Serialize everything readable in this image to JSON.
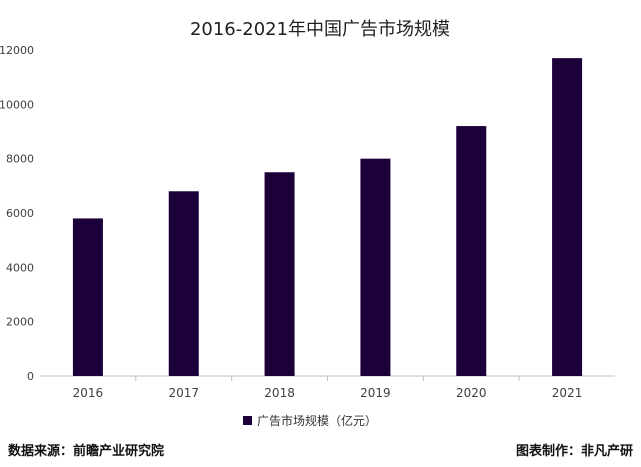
{
  "chart_data": {
    "type": "bar",
    "title": "2016-2021年中国广告市场规模",
    "categories": [
      "2016",
      "2017",
      "2018",
      "2019",
      "2020",
      "2021"
    ],
    "series": [
      {
        "name": "广告市场规模（亿元）",
        "values": [
          5800,
          6800,
          7500,
          8000,
          9200,
          11700
        ]
      }
    ],
    "ylim": [
      0,
      12000
    ],
    "yticks": [
      0,
      2000,
      4000,
      6000,
      8000,
      10000,
      12000
    ],
    "grid": false,
    "legend_position": "bottom-center",
    "bar_color": "#1c0039"
  },
  "footer": {
    "source": "数据来源：前瞻产业研究院",
    "credit": "图表制作：非凡产研"
  }
}
